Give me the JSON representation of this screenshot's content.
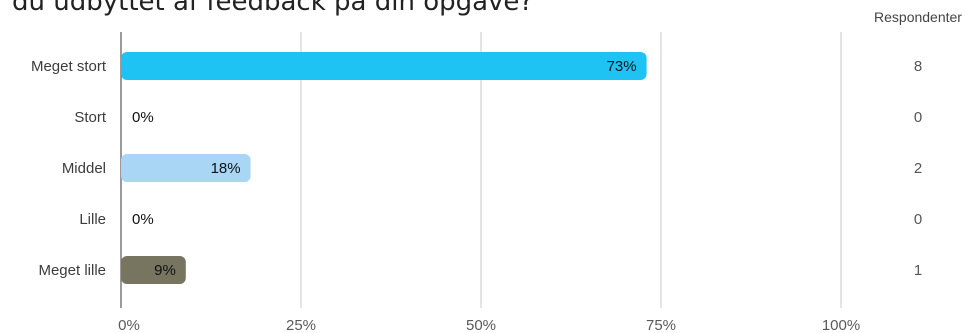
{
  "chart_data": {
    "type": "bar",
    "orientation": "horizontal",
    "title": "du udbyttet af feedback på din opgave?",
    "categories": [
      "Meget stort",
      "Stort",
      "Middel",
      "Lille",
      "Meget lille"
    ],
    "values": [
      73,
      0,
      18,
      0,
      9
    ],
    "value_labels": [
      "73%",
      "0%",
      "18%",
      "0%",
      "9%"
    ],
    "colors": [
      "#1fc3f3",
      "#1fc3f3",
      "#a9d6f5",
      "#a9d6f5",
      "#77745f"
    ],
    "xlim": [
      0,
      100
    ],
    "xticks": [
      0,
      25,
      50,
      75,
      100
    ],
    "xtick_labels": [
      "0%",
      "25%",
      "50%",
      "75%",
      "100%"
    ],
    "grid": true,
    "respondents": {
      "header": "Respondenter",
      "values": [
        "8",
        "0",
        "2",
        "0",
        "1"
      ]
    }
  }
}
